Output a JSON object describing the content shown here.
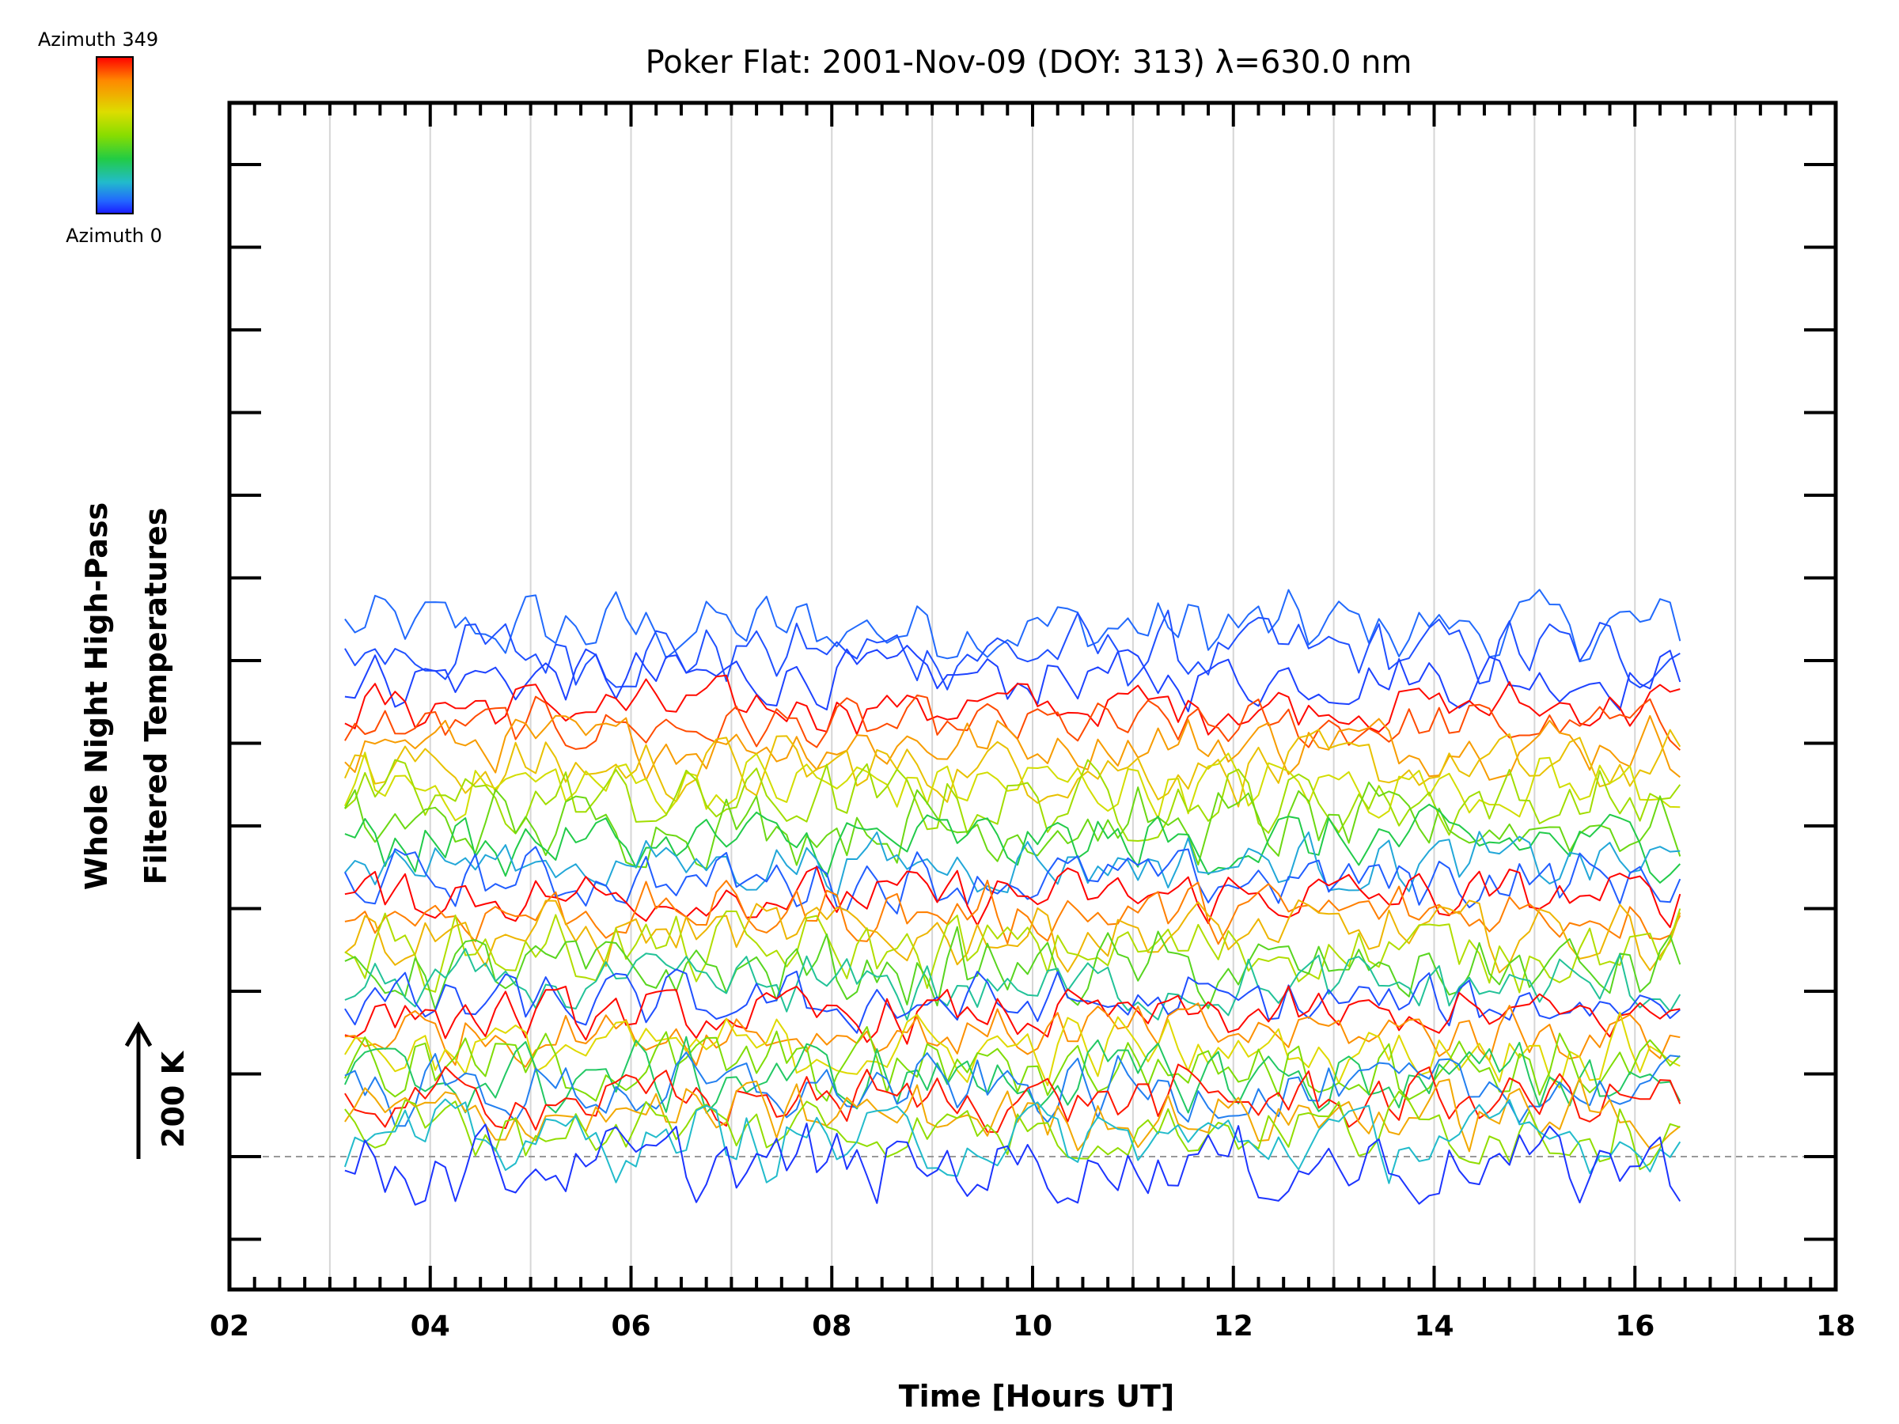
{
  "chart_data": {
    "type": "line",
    "title": "Poker Flat: 2001-Nov-09 (DOY: 313) λ=630.0 nm",
    "xlabel": "Time [Hours UT]",
    "ylabel_line1": "Whole Night High-Pass",
    "ylabel_line2": "Filtered Temperatures",
    "xlim": [
      2,
      18
    ],
    "x_tick_labels": [
      "02",
      "04",
      "06",
      "08",
      "10",
      "12",
      "14",
      "16",
      "18"
    ],
    "y_ticks_major_count": 14,
    "scale_bar_label": "200 K",
    "grid": "vertical",
    "colorbar": {
      "top_label": "Azimuth 349",
      "bottom_label": "Azimuth 0",
      "colors": [
        "#ff0000",
        "#ff8800",
        "#dddd00",
        "#88dd00",
        "#22cc44",
        "#22bbcc",
        "#2266ff",
        "#1a1aff"
      ]
    },
    "series_time_range": [
      3.15,
      16.45
    ],
    "series_step_hours": 0.1,
    "series": [
      {
        "azimuth": 30,
        "offset": 6.4,
        "amplitude": 0.55
      },
      {
        "azimuth": 20,
        "offset": 6.1,
        "amplitude": 0.55
      },
      {
        "azimuth": 15,
        "offset": 5.8,
        "amplitude": 0.45
      },
      {
        "azimuth": 345,
        "offset": 5.45,
        "amplitude": 0.4
      },
      {
        "azimuth": 320,
        "offset": 5.2,
        "amplitude": 0.4
      },
      {
        "azimuth": 280,
        "offset": 5.0,
        "amplitude": 0.45
      },
      {
        "azimuth": 250,
        "offset": 4.7,
        "amplitude": 0.5
      },
      {
        "azimuth": 220,
        "offset": 4.5,
        "amplitude": 0.5
      },
      {
        "azimuth": 190,
        "offset": 4.3,
        "amplitude": 0.55
      },
      {
        "azimuth": 160,
        "offset": 4.0,
        "amplitude": 0.55
      },
      {
        "azimuth": 120,
        "offset": 3.8,
        "amplitude": 0.5
      },
      {
        "azimuth": 60,
        "offset": 3.55,
        "amplitude": 0.45
      },
      {
        "azimuth": 25,
        "offset": 3.35,
        "amplitude": 0.45
      },
      {
        "azimuth": 348,
        "offset": 3.15,
        "amplitude": 0.4
      },
      {
        "azimuth": 300,
        "offset": 2.95,
        "amplitude": 0.45
      },
      {
        "azimuth": 260,
        "offset": 2.7,
        "amplitude": 0.5
      },
      {
        "azimuth": 200,
        "offset": 2.5,
        "amplitude": 0.55
      },
      {
        "azimuth": 150,
        "offset": 2.25,
        "amplitude": 0.55
      },
      {
        "azimuth": 90,
        "offset": 2.05,
        "amplitude": 0.5
      },
      {
        "azimuth": 20,
        "offset": 1.85,
        "amplitude": 0.45
      },
      {
        "azimuth": 346,
        "offset": 1.7,
        "amplitude": 0.4
      },
      {
        "azimuth": 290,
        "offset": 1.5,
        "amplitude": 0.45
      },
      {
        "azimuth": 230,
        "offset": 1.3,
        "amplitude": 0.5
      },
      {
        "azimuth": 170,
        "offset": 1.1,
        "amplitude": 0.55
      },
      {
        "azimuth": 110,
        "offset": 0.95,
        "amplitude": 0.55
      },
      {
        "azimuth": 40,
        "offset": 0.8,
        "amplitude": 0.5
      },
      {
        "azimuth": 340,
        "offset": 0.7,
        "amplitude": 0.45
      },
      {
        "azimuth": 270,
        "offset": 0.5,
        "amplitude": 0.5
      },
      {
        "azimuth": 180,
        "offset": 0.35,
        "amplitude": 0.55
      },
      {
        "azimuth": 70,
        "offset": 0.2,
        "amplitude": 0.55
      },
      {
        "azimuth": 10,
        "offset": -0.1,
        "amplitude": 0.6
      }
    ]
  }
}
